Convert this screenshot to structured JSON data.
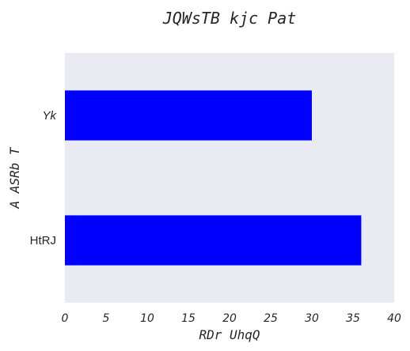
{
  "chart_data": {
    "type": "bar",
    "orientation": "horizontal",
    "title": "JQWsTB kjc Pat",
    "xlabel": "RDr UhqQ",
    "ylabel": "A  ASRb T",
    "categories": [
      "Yk",
      "HtRJ"
    ],
    "values": [
      30,
      36
    ],
    "xlim": [
      0,
      40
    ],
    "xticks": [
      "0",
      "5",
      "10",
      "15",
      "20",
      "25",
      "30",
      "35",
      "40"
    ],
    "grid": false,
    "bar_color": "#0000ff",
    "plot_background": "#eaeaf2"
  }
}
